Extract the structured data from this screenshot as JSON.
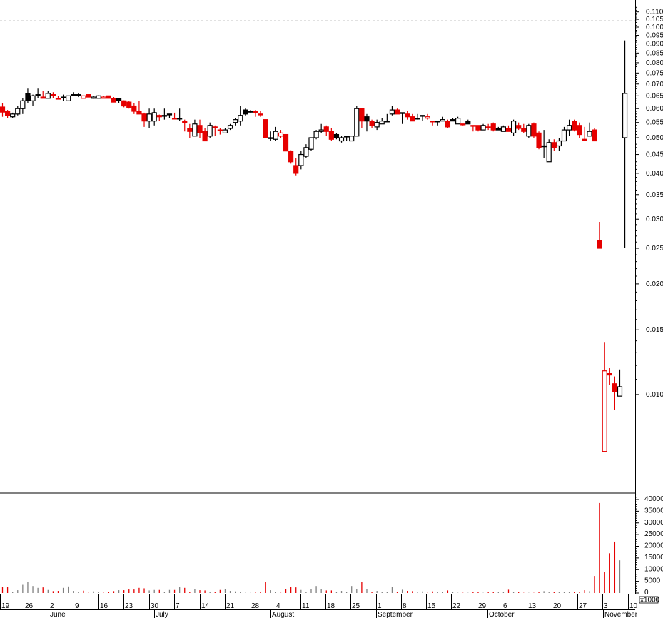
{
  "chart_data": {
    "type": "candlestick",
    "price_scale": "log",
    "price_axis_ticks": [
      "0.110",
      "0.105",
      "0.100",
      "0.095",
      "0.090",
      "0.085",
      "0.080",
      "0.075",
      "0.070",
      "0.065",
      "0.060",
      "0.055",
      "0.050",
      "0.045",
      "0.040",
      "0.035",
      "0.030",
      "0.025",
      "0.020",
      "0.015",
      "0.010"
    ],
    "reference_line": 0.104,
    "volume_axis_ticks": [
      "40000",
      "35000",
      "30000",
      "25000",
      "20000",
      "15000",
      "10000",
      "5000",
      "0"
    ],
    "volume_unit": "x1000",
    "week_labels": [
      "19",
      "26",
      "2",
      "9",
      "16",
      "23",
      "30",
      "7",
      "14",
      "21",
      "28",
      "4",
      "11",
      "18",
      "25",
      "1",
      "8",
      "15",
      "22",
      "29",
      "6",
      "13",
      "20",
      "27",
      "3",
      "10"
    ],
    "month_labels": [
      "June",
      "July",
      "August",
      "September",
      "October",
      "November"
    ],
    "colors": {
      "down": "#e60000",
      "up": "#000000",
      "volume_up": "#808080"
    },
    "ohlc": [
      [
        0.0606,
        0.062,
        0.057,
        0.0587
      ],
      [
        0.059,
        0.0595,
        0.0565,
        0.0575
      ],
      [
        0.057,
        0.0585,
        0.0565,
        0.058
      ],
      [
        0.058,
        0.061,
        0.0575,
        0.06
      ],
      [
        0.06,
        0.064,
        0.058,
        0.063
      ],
      [
        0.066,
        0.068,
        0.062,
        0.063
      ],
      [
        0.063,
        0.0655,
        0.061,
        0.065
      ],
      [
        0.0655,
        0.068,
        0.064,
        0.0655
      ],
      [
        0.0645,
        0.067,
        0.064,
        0.064
      ],
      [
        0.064,
        0.067,
        0.064,
        0.066
      ],
      [
        0.0655,
        0.0665,
        0.064,
        0.065
      ],
      [
        0.064,
        0.065,
        0.064,
        0.064
      ],
      [
        0.0645,
        0.0655,
        0.063,
        0.0645
      ],
      [
        0.063,
        0.065,
        0.063,
        0.065
      ],
      [
        0.0655,
        0.0665,
        0.065,
        0.0655
      ],
      [
        0.0655,
        0.066,
        0.0645,
        0.0655
      ],
      [
        0.064,
        0.065,
        0.064,
        0.065
      ],
      [
        0.0655,
        0.0655,
        0.0645,
        0.0645
      ],
      [
        0.064,
        0.0648,
        0.0638,
        0.0645
      ],
      [
        0.064,
        0.0652,
        0.064,
        0.065
      ],
      [
        0.064,
        0.0648,
        0.064,
        0.0645
      ],
      [
        0.065,
        0.065,
        0.064,
        0.064
      ],
      [
        0.064,
        0.0645,
        0.0625,
        0.0625
      ],
      [
        0.064,
        0.064,
        0.062,
        0.063
      ],
      [
        0.063,
        0.0632,
        0.0605,
        0.061
      ],
      [
        0.0625,
        0.0628,
        0.06,
        0.0605
      ],
      [
        0.061,
        0.062,
        0.058,
        0.059
      ],
      [
        0.059,
        0.063,
        0.058,
        0.058
      ],
      [
        0.058,
        0.0585,
        0.0535,
        0.0555
      ],
      [
        0.0555,
        0.06,
        0.053,
        0.058
      ],
      [
        0.0555,
        0.06,
        0.054,
        0.0585
      ],
      [
        0.0575,
        0.0578,
        0.0555,
        0.057
      ],
      [
        0.0575,
        0.06,
        0.056,
        0.0575
      ],
      [
        0.058,
        0.058,
        0.0565,
        0.058
      ],
      [
        0.0565,
        0.0585,
        0.0565,
        0.0565
      ],
      [
        0.0565,
        0.06,
        0.0555,
        0.0565
      ],
      [
        0.0555,
        0.056,
        0.052,
        0.055
      ],
      [
        0.053,
        0.0545,
        0.05,
        0.052
      ],
      [
        0.0505,
        0.056,
        0.0505,
        0.0545
      ],
      [
        0.054,
        0.056,
        0.05,
        0.0515
      ],
      [
        0.052,
        0.053,
        0.049,
        0.049
      ],
      [
        0.0505,
        0.055,
        0.05,
        0.054
      ],
      [
        0.0535,
        0.054,
        0.0505,
        0.0535
      ],
      [
        0.0525,
        0.053,
        0.051,
        0.0525
      ],
      [
        0.0515,
        0.053,
        0.0515,
        0.0525
      ],
      [
        0.053,
        0.0545,
        0.0525,
        0.054
      ],
      [
        0.055,
        0.0565,
        0.054,
        0.056
      ],
      [
        0.0555,
        0.061,
        0.054,
        0.0575
      ],
      [
        0.0595,
        0.06,
        0.0575,
        0.058
      ],
      [
        0.059,
        0.0595,
        0.0585,
        0.059
      ],
      [
        0.059,
        0.0595,
        0.057,
        0.0585
      ],
      [
        0.058,
        0.059,
        0.057,
        0.058
      ],
      [
        0.056,
        0.056,
        0.05,
        0.05
      ],
      [
        0.05,
        0.052,
        0.049,
        0.05
      ],
      [
        0.0495,
        0.0535,
        0.049,
        0.052
      ],
      [
        0.0505,
        0.0525,
        0.05,
        0.0515
      ],
      [
        0.051,
        0.051,
        0.046,
        0.046
      ],
      [
        0.046,
        0.0462,
        0.0425,
        0.043
      ],
      [
        0.042,
        0.044,
        0.0395,
        0.04
      ],
      [
        0.042,
        0.046,
        0.041,
        0.045
      ],
      [
        0.0445,
        0.048,
        0.044,
        0.047
      ],
      [
        0.0465,
        0.05,
        0.046,
        0.05
      ],
      [
        0.05,
        0.0525,
        0.0495,
        0.052
      ],
      [
        0.052,
        0.0545,
        0.0515,
        0.0525
      ],
      [
        0.0535,
        0.054,
        0.0505,
        0.052
      ],
      [
        0.052,
        0.053,
        0.049,
        0.0495
      ],
      [
        0.051,
        0.0515,
        0.0495,
        0.05
      ],
      [
        0.049,
        0.0505,
        0.0485,
        0.05
      ],
      [
        0.0505,
        0.0505,
        0.049,
        0.0505
      ],
      [
        0.049,
        0.0505,
        0.049,
        0.0505
      ],
      [
        0.0505,
        0.061,
        0.0505,
        0.06
      ],
      [
        0.06,
        0.06,
        0.053,
        0.0555
      ],
      [
        0.057,
        0.058,
        0.052,
        0.0555
      ],
      [
        0.0555,
        0.056,
        0.053,
        0.054
      ],
      [
        0.0535,
        0.056,
        0.0525,
        0.055
      ],
      [
        0.0545,
        0.0565,
        0.0545,
        0.0555
      ],
      [
        0.0555,
        0.058,
        0.0555,
        0.0555
      ],
      [
        0.058,
        0.061,
        0.0575,
        0.0595
      ],
      [
        0.0595,
        0.06,
        0.058,
        0.058
      ],
      [
        0.0585,
        0.0585,
        0.0545,
        0.0585
      ],
      [
        0.058,
        0.059,
        0.056,
        0.057
      ],
      [
        0.057,
        0.058,
        0.056,
        0.0555
      ],
      [
        0.0565,
        0.058,
        0.056,
        0.0565
      ],
      [
        0.0575,
        0.0575,
        0.0555,
        0.0575
      ],
      [
        0.0565,
        0.058,
        0.056,
        0.057
      ],
      [
        0.0555,
        0.0555,
        0.054,
        0.0555
      ],
      [
        0.0555,
        0.0555,
        0.054,
        0.0555
      ],
      [
        0.0555,
        0.057,
        0.0555,
        0.056
      ],
      [
        0.0555,
        0.056,
        0.053,
        0.0535
      ],
      [
        0.056,
        0.0565,
        0.0555,
        0.0555
      ],
      [
        0.0545,
        0.057,
        0.0545,
        0.0565
      ],
      [
        0.0545,
        0.0545,
        0.054,
        0.0545
      ],
      [
        0.0555,
        0.056,
        0.0545,
        0.0545
      ],
      [
        0.054,
        0.054,
        0.052,
        0.054
      ],
      [
        0.054,
        0.054,
        0.052,
        0.0525
      ],
      [
        0.0525,
        0.0545,
        0.0525,
        0.054
      ],
      [
        0.0535,
        0.0545,
        0.0525,
        0.0535
      ],
      [
        0.0545,
        0.055,
        0.052,
        0.0525
      ],
      [
        0.053,
        0.0535,
        0.0525,
        0.0525
      ],
      [
        0.052,
        0.054,
        0.052,
        0.0535
      ],
      [
        0.053,
        0.054,
        0.052,
        0.052
      ],
      [
        0.0515,
        0.056,
        0.0505,
        0.0555
      ],
      [
        0.054,
        0.055,
        0.0525,
        0.053
      ],
      [
        0.053,
        0.0545,
        0.0515,
        0.052
      ],
      [
        0.0505,
        0.0545,
        0.05,
        0.054
      ],
      [
        0.0545,
        0.055,
        0.05,
        0.0505
      ],
      [
        0.0515,
        0.052,
        0.0465,
        0.047
      ],
      [
        0.0475,
        0.0525,
        0.044,
        0.0475
      ],
      [
        0.043,
        0.0495,
        0.043,
        0.0485
      ],
      [
        0.0485,
        0.0495,
        0.046,
        0.047
      ],
      [
        0.0475,
        0.05,
        0.046,
        0.049
      ],
      [
        0.049,
        0.0535,
        0.049,
        0.0525
      ],
      [
        0.0525,
        0.056,
        0.0505,
        0.054
      ],
      [
        0.0555,
        0.056,
        0.052,
        0.0525
      ],
      [
        0.054,
        0.055,
        0.05,
        0.051
      ],
      [
        0.0495,
        0.0535,
        0.0495,
        0.0495
      ],
      [
        0.0505,
        0.055,
        0.0505,
        0.052
      ],
      [
        0.0525,
        0.053,
        0.049,
        0.049
      ],
      [
        0.0262,
        0.0295,
        0.025,
        0.025
      ],
      [
        0.007,
        0.0139,
        0.007,
        0.0116
      ],
      [
        0.0114,
        0.0118,
        0.0106,
        0.0113
      ],
      [
        0.0107,
        0.0112,
        0.0091,
        0.0102
      ],
      [
        0.0099,
        0.0117,
        0.0099,
        0.0105
      ],
      [
        0.05,
        0.092,
        0.025,
        0.066
      ]
    ],
    "volume": [
      2500,
      2500,
      500,
      1200,
      3500,
      4800,
      3000,
      2200,
      2400,
      1300,
      800,
      900,
      2200,
      2800,
      900,
      500,
      1000,
      100,
      700,
      400,
      100,
      400,
      800,
      1200,
      1200,
      1500,
      1500,
      2200,
      2000,
      1100,
      1300,
      1300,
      400,
      1300,
      1300,
      2700,
      2200,
      600,
      1600,
      1200,
      1100,
      400,
      300,
      1300,
      1600,
      900,
      700,
      600,
      100,
      100,
      200,
      300,
      4800,
      1200,
      300,
      100,
      1800,
      2500,
      2400,
      1300,
      600,
      1600,
      3000,
      1600,
      1100,
      1100,
      500,
      900,
      500,
      3000,
      1800,
      4800,
      1800,
      400,
      900,
      500,
      600,
      2500,
      600,
      1400,
      900,
      800,
      500,
      700,
      100,
      700,
      300,
      500,
      1100,
      500,
      100,
      100,
      100,
      400,
      400,
      100,
      500,
      600,
      600,
      300,
      1400,
      400,
      600,
      100,
      100,
      100,
      300,
      800,
      300,
      300,
      500,
      300,
      500,
      300,
      200,
      1200,
      800,
      7300,
      38500,
      9000,
      17000,
      22000,
      14000
    ]
  }
}
